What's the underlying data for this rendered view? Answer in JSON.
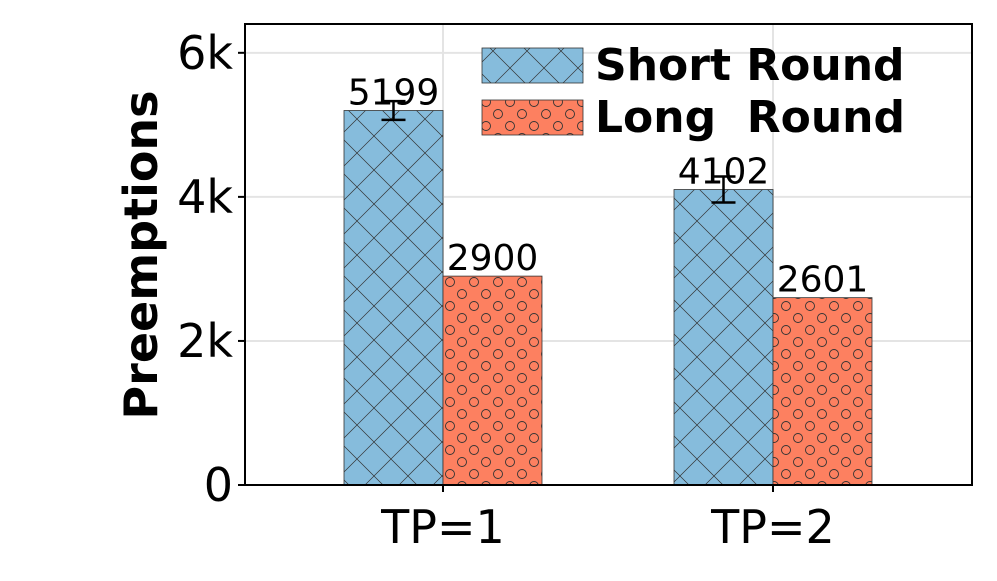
{
  "chart_data": {
    "type": "bar",
    "categories": [
      "TP=1",
      "TP=2"
    ],
    "series": [
      {
        "name": "Short Round",
        "values": [
          5199,
          4102
        ],
        "error": [
          130,
          180
        ],
        "color": "#86bcdc",
        "hatch": "crosshatch"
      },
      {
        "name": "Long  Round",
        "values": [
          2900,
          2601
        ],
        "color": "#fd8060",
        "hatch": "circles"
      }
    ],
    "data_labels": [
      [
        "5199",
        "4102"
      ],
      [
        "2900",
        "2601"
      ]
    ],
    "ylabel": "Preemptions",
    "ylim": [
      0,
      6400
    ],
    "yticks": [
      0,
      2000,
      4000,
      6000
    ],
    "ytick_labels": [
      "0",
      "2k",
      "4k",
      "6k"
    ],
    "grid": true,
    "legend_position": "top-right"
  }
}
